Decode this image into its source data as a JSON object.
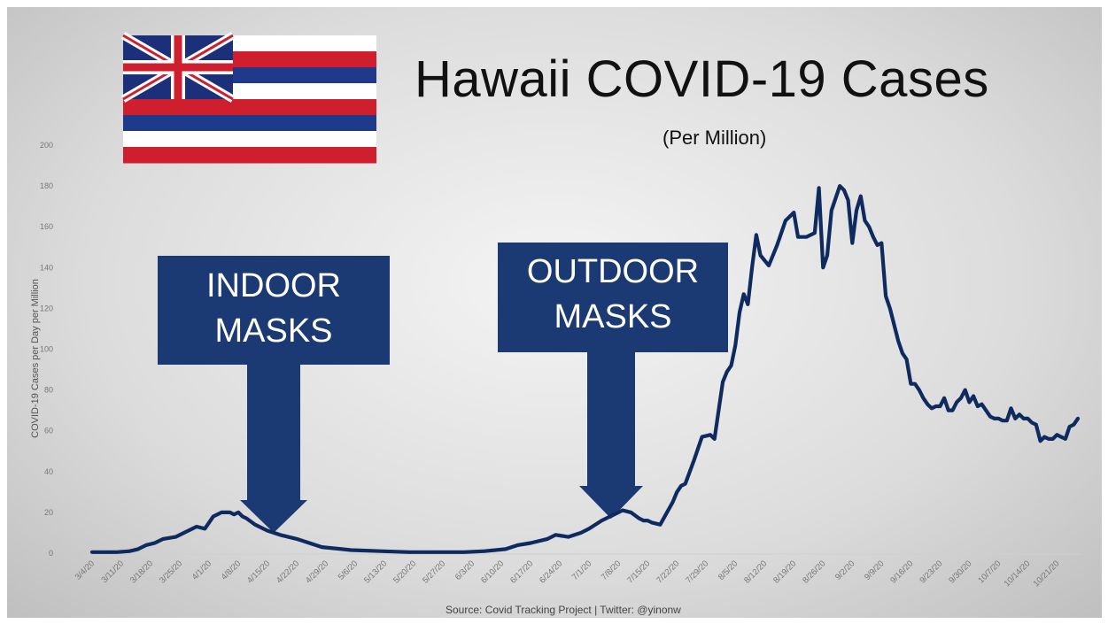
{
  "title": "Hawaii COVID-19 Cases",
  "subtitle": "(Per Million)",
  "source": "Source: Covid Tracking Project | Twitter: @yinonw",
  "annotations": [
    {
      "line1": "INDOOR",
      "line2": "MASKS",
      "date": "4/22/20"
    },
    {
      "line1": "OUTDOOR",
      "line2": "MASKS",
      "date": "7/10/20"
    }
  ],
  "colors": {
    "line": "#0f2a5f",
    "callout": "#1b3a74",
    "flag_red": "#cf1f2e",
    "flag_blue": "#1f3a8a"
  },
  "chart_data": {
    "type": "line",
    "title": "Hawaii COVID-19 Cases",
    "ylabel": "COVID-19 Cases per Day per Million",
    "xlabel": "",
    "ylim": [
      0,
      200
    ],
    "yticks": [
      0,
      20,
      40,
      60,
      80,
      100,
      120,
      140,
      160,
      180,
      200
    ],
    "grid": false,
    "categories": [
      "3/4/20",
      "3/11/20",
      "3/18/20",
      "3/25/20",
      "4/1/20",
      "4/8/20",
      "4/15/20",
      "4/22/20",
      "4/29/20",
      "5/6/20",
      "5/13/20",
      "5/20/20",
      "5/27/20",
      "6/3/20",
      "6/10/20",
      "6/17/20",
      "6/24/20",
      "7/1/20",
      "7/8/20",
      "7/15/20",
      "7/22/20",
      "7/29/20",
      "8/5/20",
      "8/12/20",
      "8/19/20",
      "8/26/20",
      "9/2/20",
      "9/9/20",
      "9/16/20",
      "9/23/20",
      "9/30/20",
      "10/7/20",
      "10/14/20",
      "10/21/20"
    ],
    "series": [
      {
        "x": [
          1,
          7,
          10,
          12,
          14,
          16,
          18,
          21,
          24,
          26,
          28,
          30,
          32,
          34,
          35,
          36,
          37,
          38,
          40,
          43,
          46,
          50,
          56,
          63,
          70,
          77,
          84,
          90,
          95,
          100,
          103,
          106,
          110,
          112,
          115,
          118,
          120,
          123,
          126,
          128,
          130,
          132,
          133,
          134,
          135,
          137,
          140,
          141,
          142,
          143,
          145,
          147,
          149,
          150,
          151,
          152,
          153,
          154,
          155,
          156,
          157,
          158,
          159,
          160,
          161,
          163,
          165,
          167,
          169,
          170,
          172,
          174,
          175,
          176,
          177,
          178,
          179,
          180,
          181,
          182,
          183,
          184,
          185,
          186,
          187,
          188,
          189,
          190,
          191,
          192,
          193,
          194,
          195,
          196,
          197,
          198,
          199,
          200,
          201,
          202,
          203,
          204,
          205,
          206,
          207,
          208,
          209,
          210,
          211,
          212,
          213,
          214,
          215,
          216,
          217,
          218,
          219,
          220,
          221,
          222,
          223,
          224,
          225,
          226,
          227,
          228,
          229,
          230,
          231,
          232,
          233,
          234,
          235,
          236,
          237
        ],
        "values": [
          0.5,
          0.5,
          1,
          2,
          4,
          5,
          7,
          8,
          11,
          13,
          12,
          18,
          20,
          20,
          19,
          20,
          18,
          17,
          14,
          11,
          9,
          7,
          3,
          1.5,
          1,
          0.5,
          0.5,
          0.5,
          1,
          2,
          4,
          5,
          7,
          9,
          8,
          10,
          12,
          16,
          19,
          21,
          20,
          17,
          16,
          16,
          15,
          14,
          25,
          30,
          33,
          34,
          45,
          57,
          58,
          56,
          70,
          84,
          89,
          92,
          102,
          118,
          127,
          122,
          140,
          156,
          146,
          141,
          151,
          163,
          167,
          155,
          155,
          157,
          179,
          140,
          146,
          168,
          174,
          180,
          178,
          173,
          152,
          168,
          175,
          163,
          160,
          155,
          151,
          152,
          126,
          120,
          112,
          104,
          98,
          95,
          83,
          83,
          80,
          76,
          73,
          71,
          72,
          72,
          76,
          70,
          70,
          74,
          76,
          80,
          74,
          77,
          72,
          73,
          70,
          67,
          66,
          66,
          65,
          65,
          71,
          66,
          68,
          66,
          66,
          64,
          63,
          55,
          57,
          56,
          56,
          58,
          57,
          56,
          62,
          63,
          66
        ]
      }
    ]
  }
}
